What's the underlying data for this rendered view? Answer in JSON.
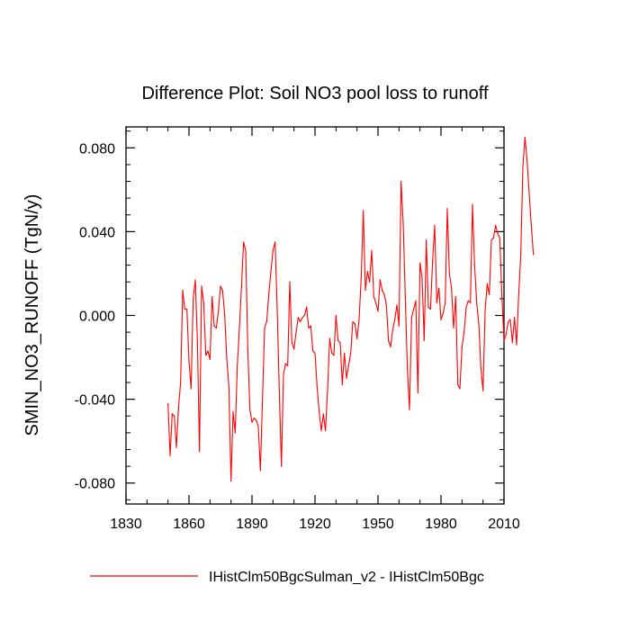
{
  "chart_data": {
    "type": "line",
    "title": "Difference Plot: Soil NO3 pool loss to runoff",
    "xlabel": "",
    "ylabel": "SMIN_NO3_RUNOFF  (TgN/y)",
    "xlim": [
      1830,
      2010
    ],
    "ylim": [
      -0.09,
      0.09
    ],
    "x_ticks": [
      1830,
      1860,
      1890,
      1920,
      1950,
      1980,
      2010
    ],
    "x_tick_labels": [
      "1830",
      "1860",
      "1890",
      "1920",
      "1950",
      "1980",
      "2010"
    ],
    "y_ticks": [
      -0.08,
      -0.04,
      0.0,
      0.04,
      0.08
    ],
    "y_tick_labels": [
      "-0.080",
      "-0.040",
      "0.000",
      "0.040",
      "0.080"
    ],
    "grid": false,
    "legend_position": "bottom",
    "series": [
      {
        "name": "IHistClm50BgcSulman_v2 - IHistClm50Bgc",
        "color": "#ff0000",
        "x_start": 1850,
        "x_step": 1,
        "values": [
          -0.042,
          -0.067,
          -0.047,
          -0.048,
          -0.063,
          -0.044,
          -0.032,
          0.012,
          0.003,
          0.003,
          -0.022,
          -0.035,
          0.008,
          0.017,
          -0.012,
          -0.065,
          0.014,
          0.006,
          -0.019,
          -0.017,
          -0.021,
          0.009,
          -0.005,
          -0.006,
          0.002,
          0.014,
          0.012,
          0.0,
          -0.021,
          -0.034,
          -0.079,
          -0.046,
          -0.056,
          -0.024,
          -0.006,
          0.014,
          0.035,
          0.031,
          -0.016,
          -0.045,
          -0.051,
          -0.049,
          -0.05,
          -0.053,
          -0.074,
          -0.04,
          -0.006,
          -0.003,
          0.01,
          0.021,
          0.031,
          0.035,
          0.003,
          -0.036,
          -0.072,
          -0.028,
          -0.023,
          -0.024,
          0.016,
          -0.013,
          -0.016,
          -0.008,
          -0.001,
          -0.003,
          -0.001,
          0.0,
          0.004,
          -0.006,
          -0.005,
          -0.017,
          -0.018,
          -0.034,
          -0.046,
          -0.055,
          -0.047,
          -0.055,
          -0.035,
          -0.011,
          -0.018,
          -0.019,
          0.0,
          -0.012,
          -0.013,
          -0.033,
          -0.018,
          -0.03,
          -0.024,
          -0.018,
          -0.003,
          -0.004,
          -0.011,
          -0.002,
          0.018,
          0.05,
          0.012,
          0.021,
          0.016,
          0.031,
          0.009,
          0.006,
          0.002,
          0.017,
          0.012,
          0.01,
          0.005,
          -0.012,
          -0.015,
          -0.007,
          -0.002,
          0.005,
          -0.005,
          0.064,
          0.044,
          0.009,
          -0.026,
          -0.045,
          -0.001,
          0.003,
          0.007,
          -0.037,
          0.025,
          0.018,
          -0.012,
          0.036,
          0.004,
          0.003,
          0.026,
          0.043,
          0.006,
          0.013,
          -0.002,
          0.001,
          0.006,
          0.051,
          0.02,
          0.013,
          -0.006,
          0.009,
          -0.033,
          -0.035,
          -0.015,
          -0.008,
          0.004,
          0.007,
          0.006,
          0.053,
          0.024,
          0.006,
          -0.004,
          -0.025,
          -0.036,
          0.002,
          0.015,
          0.01,
          0.036,
          0.037,
          0.043,
          0.039,
          0.037,
          0.009,
          -0.012,
          -0.009,
          -0.003,
          -0.002,
          -0.013,
          -0.001,
          -0.014,
          0.01,
          0.029,
          0.071,
          0.085,
          0.074,
          0.058,
          0.043,
          0.029
        ]
      }
    ]
  }
}
